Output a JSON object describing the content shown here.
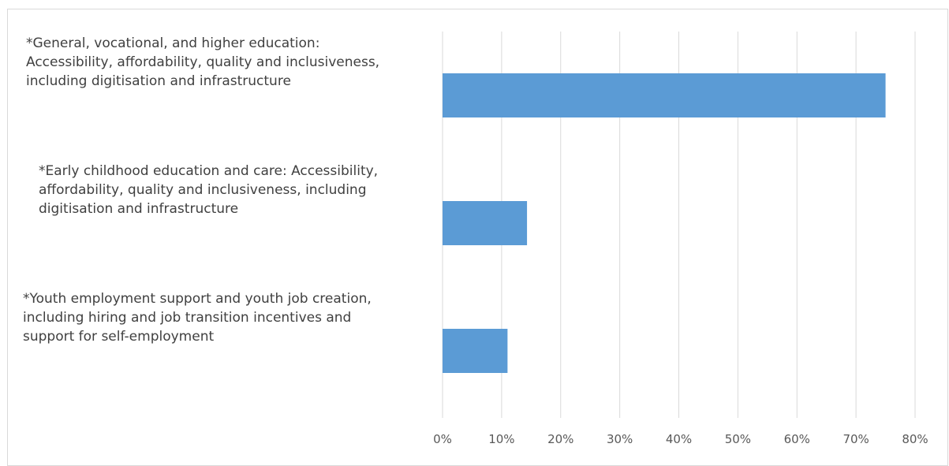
{
  "chart_data": {
    "type": "bar",
    "orientation": "horizontal",
    "categories": [
      [
        "*General, vocational, and higher education:",
        "Accessibility, affordability, quality and inclusiveness,",
        "including digitisation and infrastructure"
      ],
      [
        "*Early childhood education and care: Accessibility,",
        "affordability, quality and inclusiveness, including",
        "digitisation and infrastructure"
      ],
      [
        "*Youth employment support and youth job creation,",
        "including hiring and job transition incentives and",
        "support for self-employment"
      ]
    ],
    "values": [
      75,
      14.3,
      11
    ],
    "unit": "%",
    "xlim": [
      0,
      80
    ],
    "xticks": [
      "0%",
      "10%",
      "20%",
      "30%",
      "40%",
      "50%",
      "60%",
      "70%",
      "80%"
    ],
    "grid": true,
    "title": "",
    "xlabel": "",
    "ylabel": "",
    "colors": {
      "bar": "#5b9bd5",
      "grid": "#d9d9d9",
      "text": "#404040"
    }
  }
}
